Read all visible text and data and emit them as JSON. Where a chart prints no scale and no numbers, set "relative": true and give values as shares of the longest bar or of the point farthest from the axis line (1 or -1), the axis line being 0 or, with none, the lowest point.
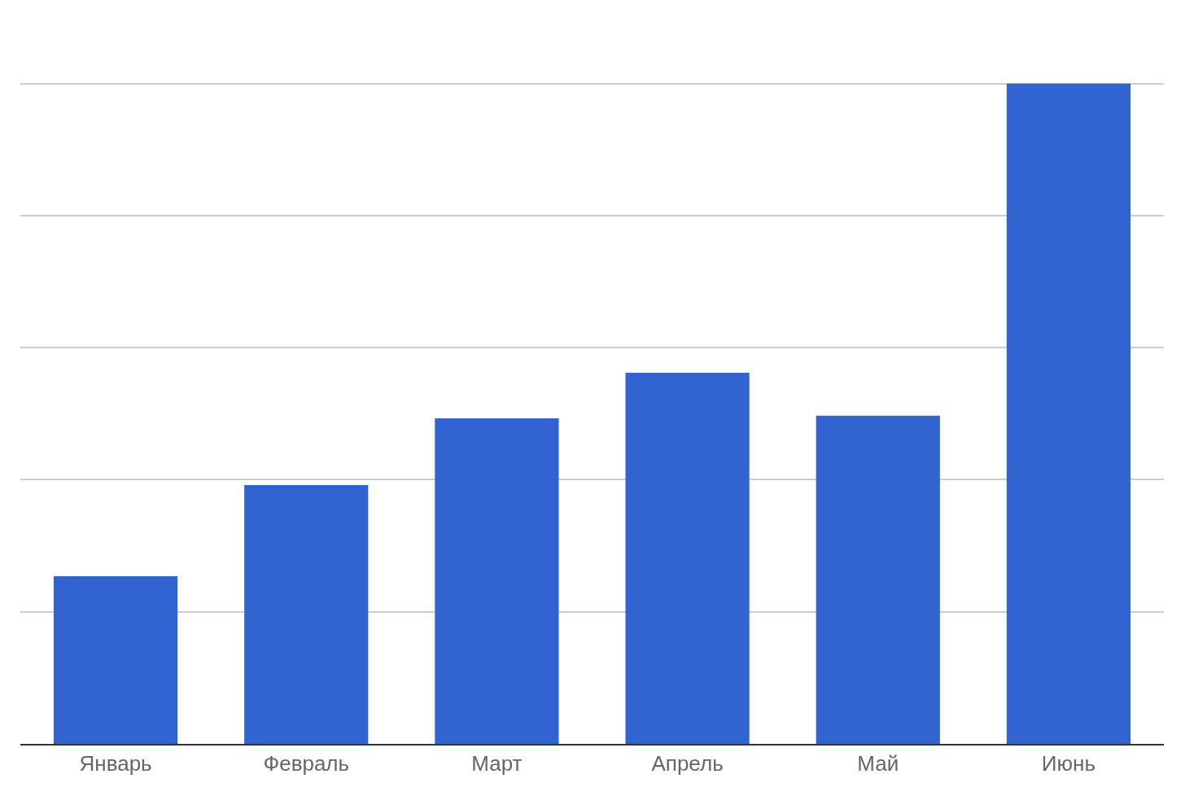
{
  "chart_data": {
    "type": "bar",
    "relative": true,
    "categories": [
      "Январь",
      "Февраль",
      "Март",
      "Апрель",
      "Май",
      "Июнь"
    ],
    "values": [
      0.254,
      0.392,
      0.493,
      0.562,
      0.497,
      1
    ],
    "color": "#3164d0",
    "grid": "y",
    "legend": false
  }
}
